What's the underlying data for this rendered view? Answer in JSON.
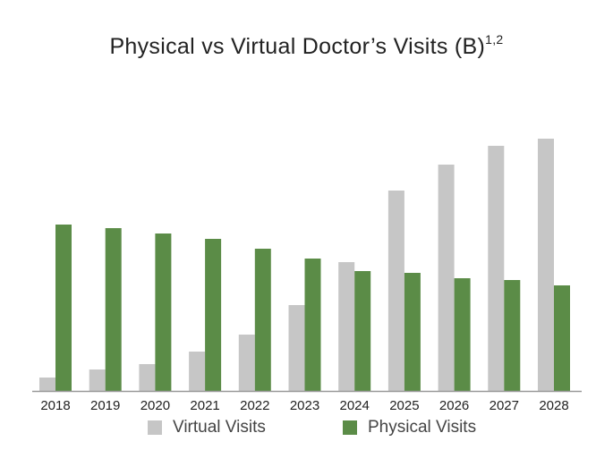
{
  "chart_data": {
    "type": "bar",
    "title": "Physical vs Virtual Doctor’s Visits (B)",
    "title_superscript": "1,2",
    "categories": [
      "2018",
      "2019",
      "2020",
      "2021",
      "2022",
      "2023",
      "2024",
      "2025",
      "2026",
      "2027",
      "2028"
    ],
    "series": [
      {
        "name": "Virtual Visits",
        "color": "#c6c6c6",
        "values": [
          15,
          24,
          30,
          44,
          63,
          96,
          144,
          224,
          253,
          274,
          282
        ]
      },
      {
        "name": "Physical Visits",
        "color": "#5b8c47",
        "values": [
          186,
          182,
          176,
          170,
          159,
          148,
          134,
          132,
          126,
          124,
          118
        ]
      }
    ],
    "ylim": [
      0,
      300
    ],
    "y_axis_shown": false,
    "grid": false,
    "legend_position": "bottom",
    "xlabel": "",
    "ylabel": ""
  }
}
